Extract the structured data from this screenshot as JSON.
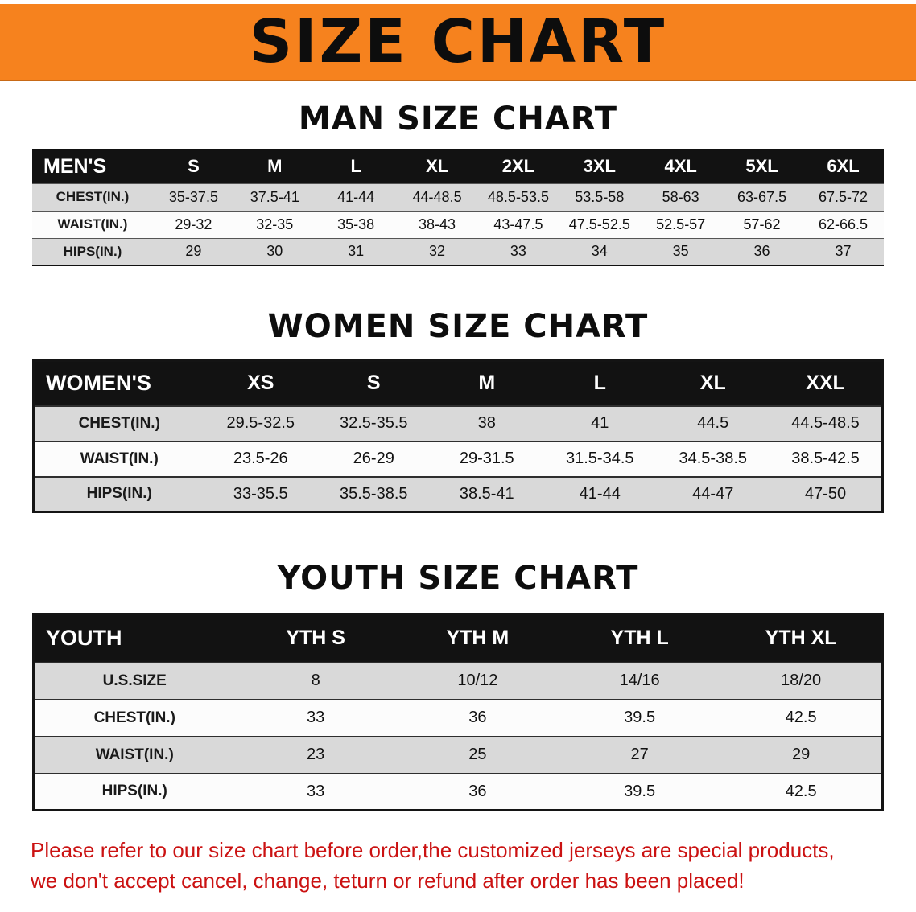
{
  "banner": {
    "title": "SIZE CHART",
    "bg_color": "#F6821E",
    "text_color": "#0d0d0d"
  },
  "sections": [
    {
      "id": "men",
      "heading": "MAN SIZE CHART",
      "label_header": "MEN'S",
      "columns": [
        "S",
        "M",
        "L",
        "XL",
        "2XL",
        "3XL",
        "4XL",
        "5XL",
        "6XL"
      ],
      "rows": [
        {
          "label": "CHEST(IN.)",
          "values": [
            "35-37.5",
            "37.5-41",
            "41-44",
            "44-48.5",
            "48.5-53.5",
            "53.5-58",
            "58-63",
            "63-67.5",
            "67.5-72"
          ]
        },
        {
          "label": "WAIST(IN.)",
          "values": [
            "29-32",
            "32-35",
            "35-38",
            "38-43",
            "43-47.5",
            "47.5-52.5",
            "52.5-57",
            "57-62",
            "62-66.5"
          ]
        },
        {
          "label": "HIPS(IN.)",
          "values": [
            "29",
            "30",
            "31",
            "32",
            "33",
            "34",
            "35",
            "36",
            "37"
          ]
        }
      ]
    },
    {
      "id": "women",
      "heading": "WOMEN SIZE CHART",
      "label_header": "WOMEN'S",
      "columns": [
        "XS",
        "S",
        "M",
        "L",
        "XL",
        "XXL"
      ],
      "rows": [
        {
          "label": "CHEST(IN.)",
          "values": [
            "29.5-32.5",
            "32.5-35.5",
            "38",
            "41",
            "44.5",
            "44.5-48.5"
          ]
        },
        {
          "label": "WAIST(IN.)",
          "values": [
            "23.5-26",
            "26-29",
            "29-31.5",
            "31.5-34.5",
            "34.5-38.5",
            "38.5-42.5"
          ]
        },
        {
          "label": "HIPS(IN.)",
          "values": [
            "33-35.5",
            "35.5-38.5",
            "38.5-41",
            "41-44",
            "44-47",
            "47-50"
          ]
        }
      ]
    },
    {
      "id": "youth",
      "heading": "YOUTH SIZE CHART",
      "label_header": "YOUTH",
      "columns": [
        "YTH S",
        "YTH M",
        "YTH L",
        "YTH XL"
      ],
      "rows": [
        {
          "label": "U.S.SIZE",
          "values": [
            "8",
            "10/12",
            "14/16",
            "18/20"
          ]
        },
        {
          "label": "CHEST(IN.)",
          "values": [
            "33",
            "36",
            "39.5",
            "42.5"
          ]
        },
        {
          "label": "WAIST(IN.)",
          "values": [
            "23",
            "25",
            "27",
            "29"
          ]
        },
        {
          "label": "HIPS(IN.)",
          "values": [
            "33",
            "36",
            "39.5",
            "42.5"
          ]
        }
      ]
    }
  ],
  "disclaimer": {
    "text_color": "#cb1212",
    "line1": "Please refer to our size chart before order,the customized jerseys are special products,",
    "line2": "we don't accept cancel, change, teturn or refund after order has been placed!"
  }
}
